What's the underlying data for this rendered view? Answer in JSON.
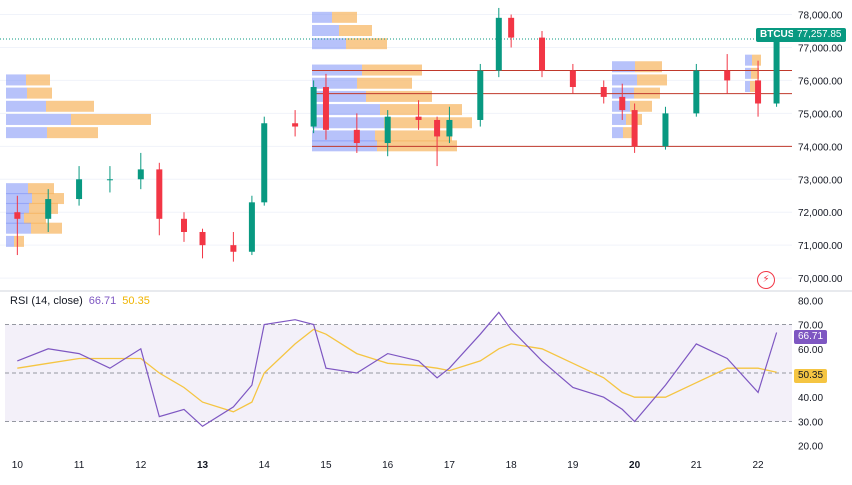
{
  "chart_data": [
    {
      "type": "candlestick",
      "symbol": "BTCUSD",
      "last_price": "77,257.85",
      "y_axis": {
        "ticks": [
          "78,000.00",
          "77,000.00",
          "76,000.00",
          "75,000.00",
          "74,000.00",
          "73,000.00",
          "72,000.00",
          "71,000.00",
          "70,000.00"
        ],
        "ylim": [
          69700,
          78350
        ]
      },
      "x_axis": {
        "ticks": [
          "10",
          "11",
          "12",
          "13",
          "14",
          "15",
          "16",
          "17",
          "18",
          "19",
          "20",
          "21",
          "22"
        ],
        "bold_ticks": [
          "13",
          "20"
        ],
        "xlim": [
          9.8,
          22.55
        ]
      },
      "ohlc_day": [
        {
          "day": 10,
          "o": 72000,
          "h": 72500,
          "l": 70700,
          "c": 71800
        },
        {
          "day": 10.5,
          "o": 71800,
          "h": 72700,
          "l": 71400,
          "c": 72400
        },
        {
          "day": 11,
          "o": 72400,
          "h": 73400,
          "l": 72200,
          "c": 73000
        },
        {
          "day": 11.5,
          "o": 73000,
          "h": 73400,
          "l": 72600,
          "c": 73000
        },
        {
          "day": 12,
          "o": 73000,
          "h": 73800,
          "l": 72700,
          "c": 73300
        },
        {
          "day": 12.3,
          "o": 73300,
          "h": 73500,
          "l": 71300,
          "c": 71800
        },
        {
          "day": 12.7,
          "o": 71800,
          "h": 72000,
          "l": 71100,
          "c": 71400
        },
        {
          "day": 13,
          "o": 71400,
          "h": 71500,
          "l": 70600,
          "c": 71000
        },
        {
          "day": 13.5,
          "o": 71000,
          "h": 71400,
          "l": 70500,
          "c": 70800
        },
        {
          "day": 13.8,
          "o": 70800,
          "h": 72500,
          "l": 70700,
          "c": 72300
        },
        {
          "day": 14,
          "o": 72300,
          "h": 74900,
          "l": 72200,
          "c": 74700
        },
        {
          "day": 14.5,
          "o": 74700,
          "h": 75100,
          "l": 74300,
          "c": 74600
        },
        {
          "day": 14.8,
          "o": 74600,
          "h": 76000,
          "l": 74400,
          "c": 75800
        },
        {
          "day": 15,
          "o": 75800,
          "h": 76200,
          "l": 74200,
          "c": 74500
        },
        {
          "day": 15.5,
          "o": 74500,
          "h": 75000,
          "l": 73800,
          "c": 74100
        },
        {
          "day": 16,
          "o": 74100,
          "h": 75100,
          "l": 73700,
          "c": 74900
        },
        {
          "day": 16.5,
          "o": 74900,
          "h": 75400,
          "l": 74500,
          "c": 74800
        },
        {
          "day": 16.8,
          "o": 74800,
          "h": 74900,
          "l": 73400,
          "c": 74300
        },
        {
          "day": 17,
          "o": 74300,
          "h": 75200,
          "l": 74100,
          "c": 74800
        },
        {
          "day": 17.5,
          "o": 74800,
          "h": 76500,
          "l": 74600,
          "c": 76300
        },
        {
          "day": 17.8,
          "o": 76300,
          "h": 78200,
          "l": 76100,
          "c": 77900
        },
        {
          "day": 18,
          "o": 77900,
          "h": 78000,
          "l": 77000,
          "c": 77300
        },
        {
          "day": 18.5,
          "o": 77300,
          "h": 77500,
          "l": 76100,
          "c": 76300
        },
        {
          "day": 19,
          "o": 76300,
          "h": 76500,
          "l": 75600,
          "c": 75800
        },
        {
          "day": 19.5,
          "o": 75800,
          "h": 76000,
          "l": 75300,
          "c": 75500
        },
        {
          "day": 19.8,
          "o": 75500,
          "h": 75900,
          "l": 74800,
          "c": 75100
        },
        {
          "day": 20,
          "o": 75100,
          "h": 75300,
          "l": 73800,
          "c": 74000
        },
        {
          "day": 20.5,
          "o": 74000,
          "h": 75200,
          "l": 73900,
          "c": 75000
        },
        {
          "day": 21,
          "o": 75000,
          "h": 76500,
          "l": 74900,
          "c": 76300
        },
        {
          "day": 21.5,
          "o": 76300,
          "h": 76800,
          "l": 75600,
          "c": 76000
        },
        {
          "day": 22,
          "o": 76000,
          "h": 76600,
          "l": 74900,
          "c": 75300
        },
        {
          "day": 22.3,
          "o": 75300,
          "h": 77300,
          "l": 75200,
          "c": 77257.85
        }
      ],
      "levels": [
        76300,
        75600,
        74000
      ],
      "colors": {
        "up": "#089981",
        "down": "#f23645",
        "level": "#c0392b",
        "vp_up": "#7b8ff5",
        "vp_down": "#f7b45c"
      }
    },
    {
      "type": "line",
      "indicator": "RSI (14, close)",
      "rsi_value": "66.71",
      "ma_value": "50.35",
      "y_axis": {
        "ticks": [
          "80.00",
          "70.00",
          "60.00",
          "40.00",
          "30.00",
          "20.00"
        ],
        "ylim": [
          17,
          83
        ]
      },
      "bands": [
        30,
        70
      ],
      "x": [
        10,
        10.5,
        11,
        11.5,
        12,
        12.3,
        12.7,
        13,
        13.5,
        13.8,
        14,
        14.5,
        14.8,
        15,
        15.5,
        16,
        16.5,
        16.8,
        17,
        17.5,
        17.8,
        18,
        18.5,
        19,
        19.5,
        19.8,
        20,
        20.5,
        21,
        21.5,
        22,
        22.3
      ],
      "rsi": [
        55,
        60,
        58,
        52,
        60,
        32,
        35,
        28,
        36,
        45,
        70,
        72,
        70,
        52,
        50,
        58,
        55,
        48,
        52,
        66,
        75,
        68,
        55,
        44,
        40,
        35,
        30,
        45,
        62,
        56,
        42,
        66.71
      ],
      "ma": [
        52,
        54,
        56,
        56,
        56,
        50,
        44,
        38,
        34,
        38,
        50,
        62,
        68,
        66,
        58,
        54,
        53,
        52,
        51,
        55,
        60,
        62,
        60,
        54,
        48,
        42,
        40,
        40,
        46,
        52,
        52,
        50.35
      ],
      "colors": {
        "rsi": "#7e57c2",
        "ma": "#f5c542",
        "band_fill": "#7e57c2"
      }
    }
  ],
  "legend": {
    "rsi_label": "RSI (14, close)",
    "rsi_value": "66.71",
    "ma_value": "50.35"
  },
  "tags": {
    "symbol": "BTCUSD",
    "price": "77,257.85",
    "rsi": "66.71",
    "ma": "50.35"
  },
  "icons": {
    "logo": "tradingview-lightning-icon"
  }
}
